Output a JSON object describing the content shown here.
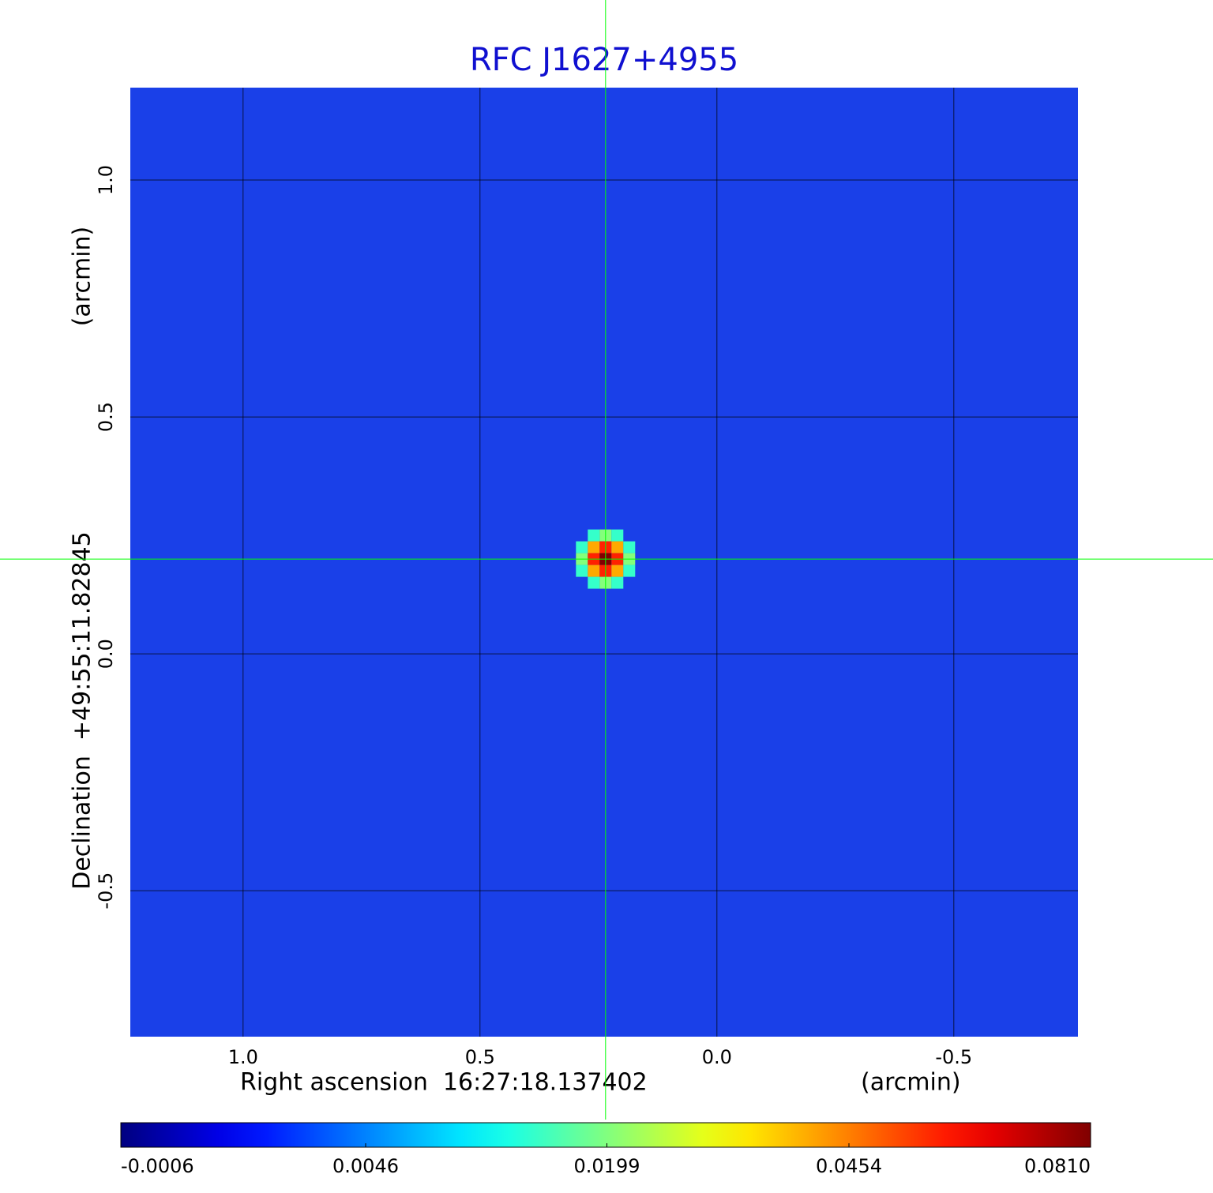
{
  "chart_data": {
    "type": "image",
    "title": "RFC J1627+4955",
    "xlabel": "Right ascension  16:27:18.137402",
    "xunit": "(arcmin)",
    "ylabel": "Declination  +49:55:11.82845",
    "yunit": "(arcmin)",
    "xlim": [
      1.238,
      -0.762
    ],
    "ylim": [
      -0.808,
      1.195
    ],
    "xticks": [
      {
        "value": 1,
        "label": "1.0"
      },
      0.5,
      {
        "value": 0,
        "label": "0.0"
      },
      -0.5
    ],
    "yticks": [
      {
        "value": -0.5,
        "label": "-0.5"
      },
      {
        "value": 0,
        "label": "0.0"
      },
      0.5,
      {
        "value": 1,
        "label": "1.0"
      }
    ],
    "grid": true,
    "colormap": "jet",
    "colorbar_scale": "sqrt",
    "clim": [
      -0.0006,
      0.081
    ],
    "colorbar_ticks": [
      -0.0006,
      0.0046,
      0.0199,
      0.0454,
      {
        "value": 0.081,
        "label": "0.0810"
      }
    ],
    "source": {
      "x": 0.235,
      "y": 0.2,
      "peak": 0.081
    },
    "crosshair_color": "#00ff00"
  }
}
